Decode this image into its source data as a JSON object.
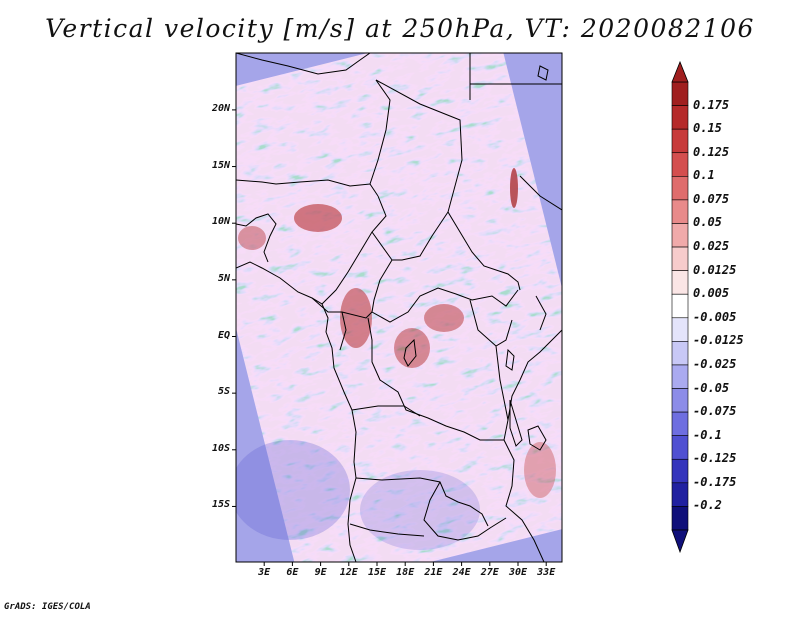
{
  "title": "Vertical velocity [m/s] at 250hPa, VT: 2020082106",
  "credit": "GrADS: IGES/COLA",
  "map": {
    "variable": "Vertical velocity",
    "units": "m/s",
    "level": "250hPa",
    "valid_time": "2020082106",
    "lat_labels": [
      "20N",
      "15N",
      "10N",
      "5N",
      "EQ",
      "5S",
      "10S",
      "15S"
    ],
    "lat_values": [
      20,
      15,
      10,
      5,
      0,
      -5,
      -10,
      -15
    ],
    "lon_labels": [
      "3E",
      "6E",
      "9E",
      "12E",
      "15E",
      "18E",
      "21E",
      "24E",
      "27E",
      "30E",
      "33E"
    ],
    "lon_values": [
      3,
      6,
      9,
      12,
      15,
      18,
      21,
      24,
      27,
      30,
      33
    ]
  },
  "colorbar": {
    "levels": [
      "0.175",
      "0.15",
      "0.125",
      "0.1",
      "0.075",
      "0.05",
      "0.025",
      "0.0125",
      "0.005",
      "-0.005",
      "-0.0125",
      "-0.025",
      "-0.05",
      "-0.075",
      "-0.1",
      "-0.125",
      "-0.175",
      "-0.2"
    ],
    "colors": [
      "#a01f1f",
      "#b52a2a",
      "#c73a3a",
      "#d44f4f",
      "#df6c6c",
      "#e88a8a",
      "#f0aaaa",
      "#f7cccc",
      "#fbe6e6",
      "#ffffff",
      "#e4e4fb",
      "#c8c8f6",
      "#aaaaf0",
      "#8c8ce8",
      "#6e6ee0",
      "#5050d2",
      "#3434bc",
      "#2020a0",
      "#10107a"
    ]
  }
}
